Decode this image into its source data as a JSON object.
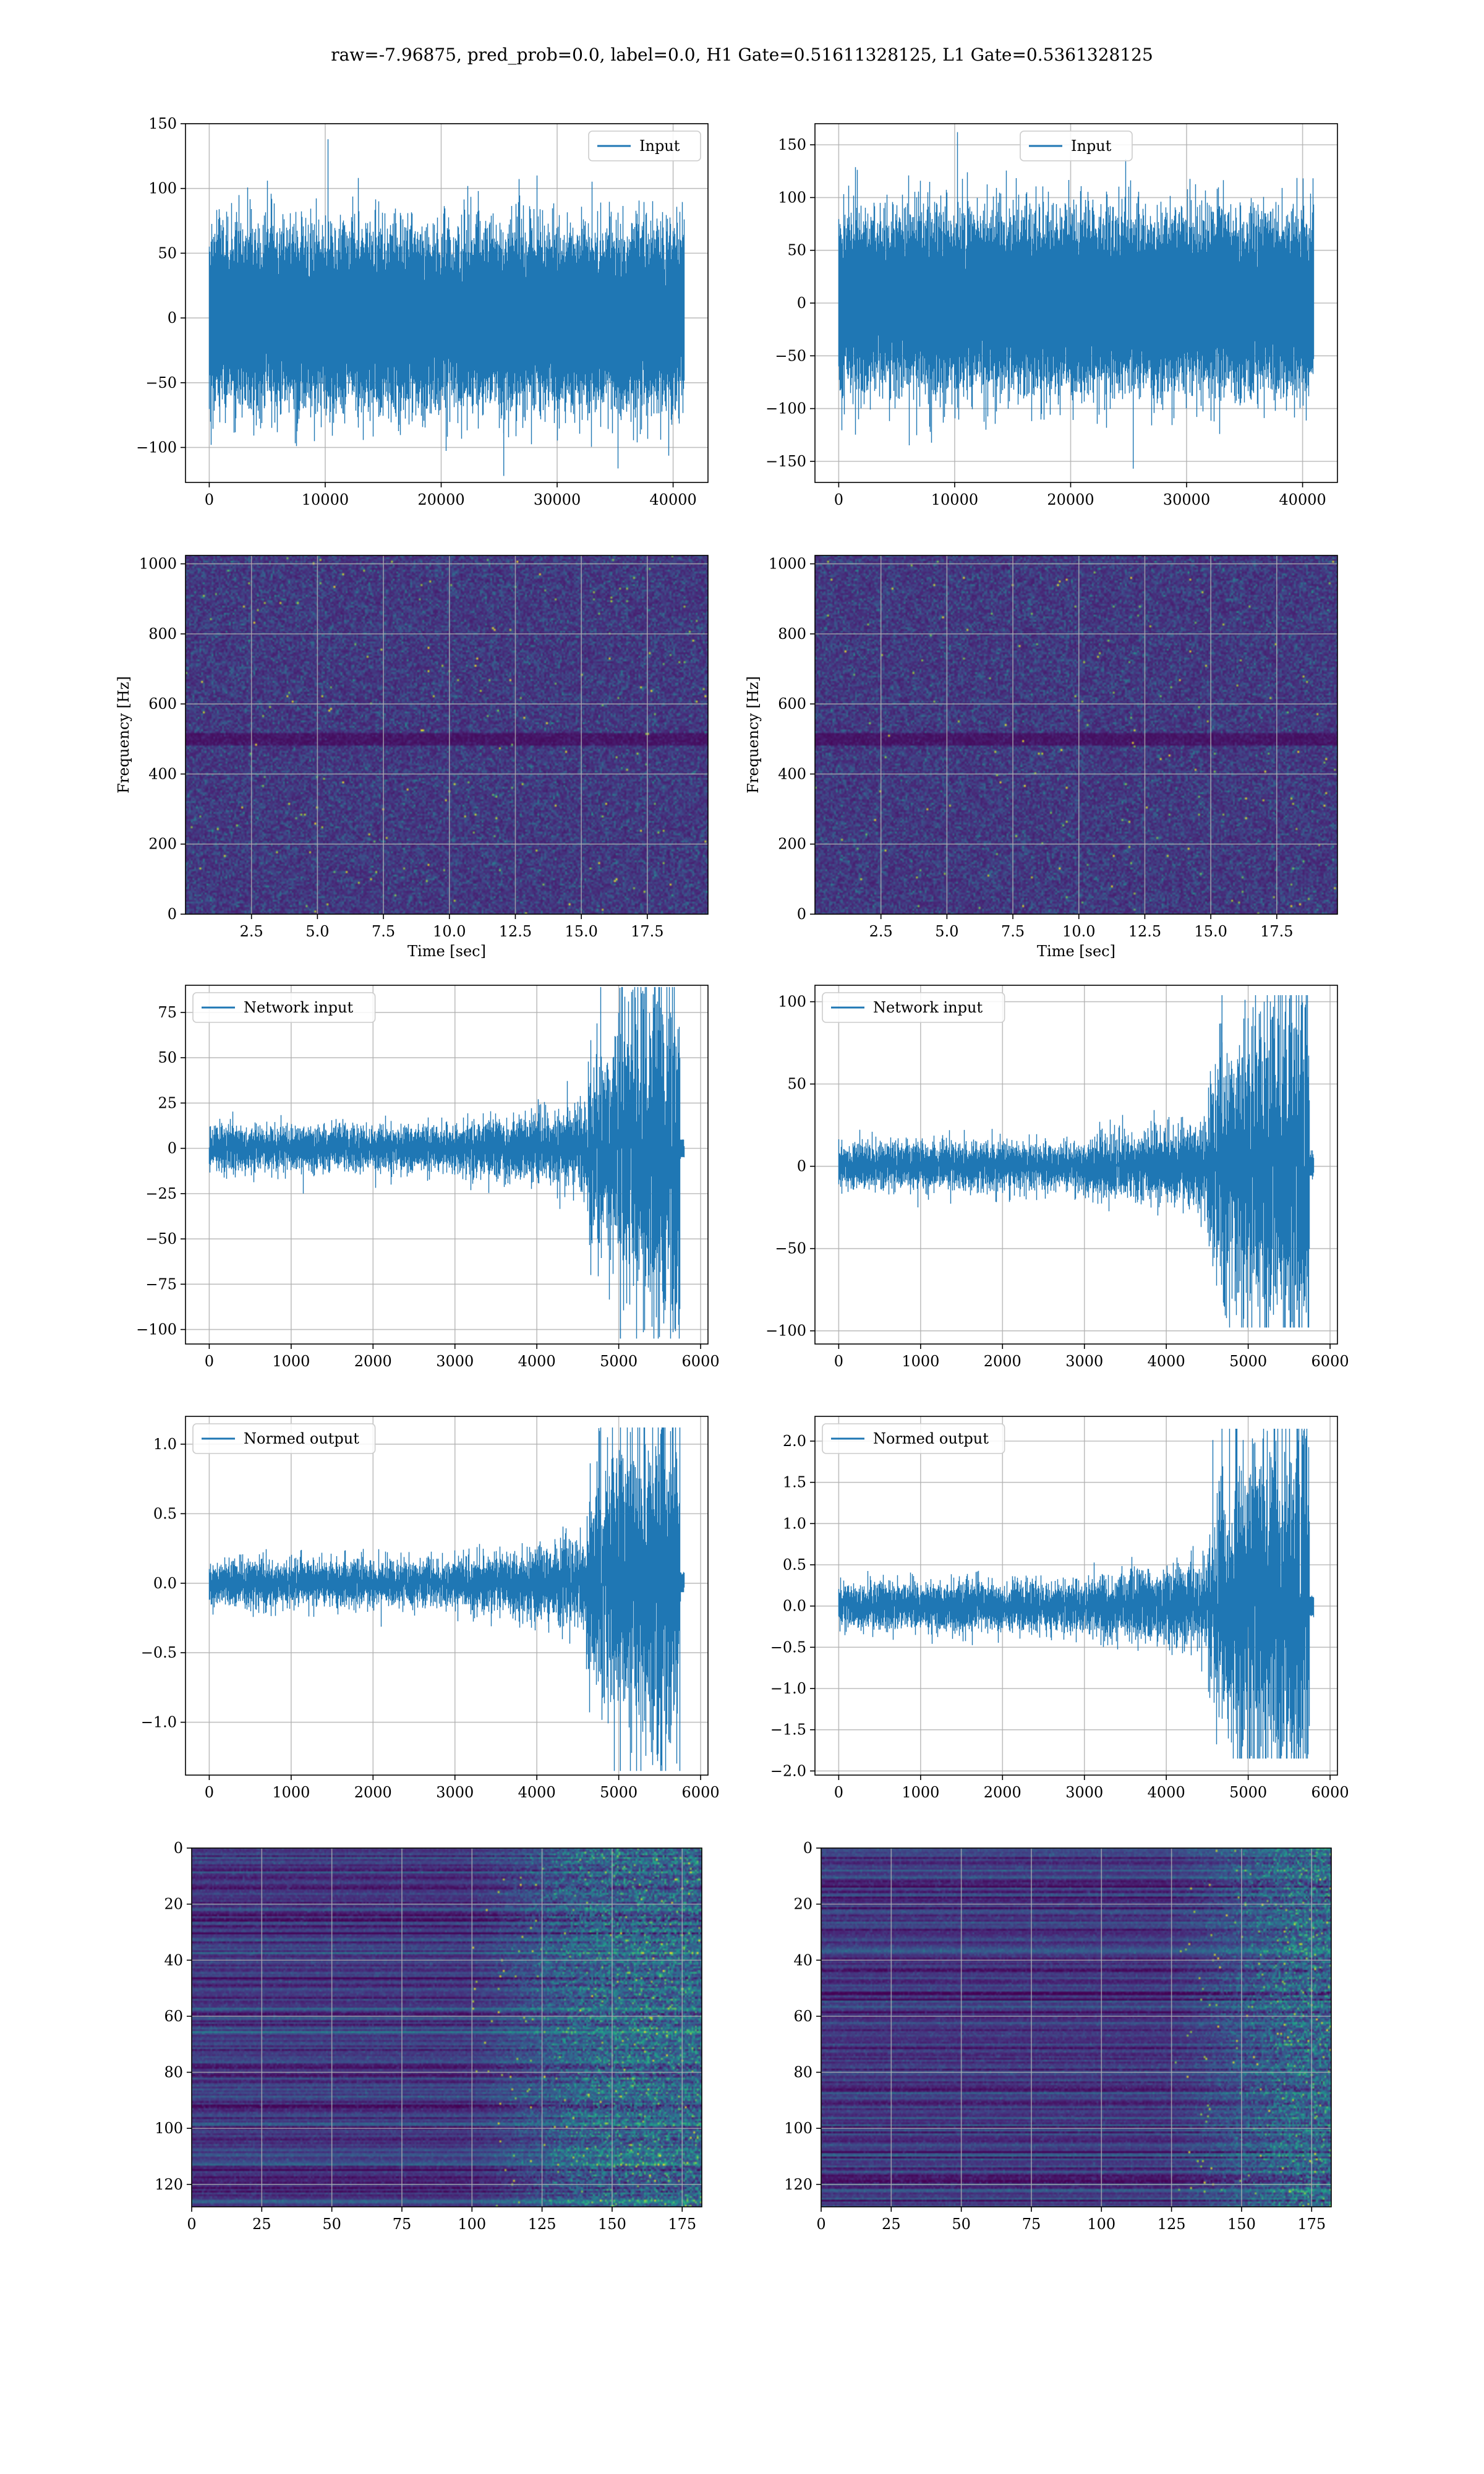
{
  "figure": {
    "suptitle": "raw=-7.96875, pred_prob=0.0, label=0.0, H1 Gate=0.51611328125, L1 Gate=0.5361328125"
  },
  "colors": {
    "line": "#1f77b4",
    "grid": "#b0b0b0",
    "viridis_low": "#440154",
    "viridis_high": "#fde725"
  },
  "chart_data": [
    {
      "id": "input-h1",
      "type": "line",
      "xlabel": "",
      "ylabel": "",
      "legend": "Input",
      "legend_loc": "upper-right",
      "xlim": [
        -2048,
        43008
      ],
      "ylim": [
        -127,
        150
      ],
      "xticks": [
        0,
        10000,
        20000,
        30000,
        40000
      ],
      "xtick_labels": [
        "0",
        "10000",
        "20000",
        "30000",
        "40000"
      ],
      "yticks": [
        -100,
        -50,
        0,
        50,
        100,
        150
      ],
      "ytick_labels": [
        "−100",
        "−50",
        "0",
        "50",
        "100",
        "150"
      ],
      "signal": {
        "n": 40960,
        "noise_std": 28,
        "peak_pos": 75,
        "peak_neg": -112,
        "max": 138,
        "min": -122
      }
    },
    {
      "id": "input-l1",
      "type": "line",
      "xlabel": "",
      "ylabel": "",
      "legend": "Input",
      "legend_loc": "upper-center",
      "xlim": [
        -2048,
        43008
      ],
      "ylim": [
        -170,
        170
      ],
      "xticks": [
        0,
        10000,
        20000,
        30000,
        40000
      ],
      "xtick_labels": [
        "0",
        "10000",
        "20000",
        "30000",
        "40000"
      ],
      "yticks": [
        -150,
        -100,
        -50,
        0,
        50,
        100,
        150
      ],
      "ytick_labels": [
        "−150",
        "−100",
        "−50",
        "0",
        "50",
        "100",
        "150"
      ],
      "signal": {
        "n": 40960,
        "noise_std": 34,
        "peak_pos": 80,
        "peak_neg": -125,
        "max": 162,
        "min": -157
      }
    },
    {
      "id": "spectrogram-h1",
      "type": "heatmap",
      "xlabel": "Time [sec]",
      "ylabel": "Frequency [Hz]",
      "xlim": [
        0,
        19.8
      ],
      "ylim": [
        0,
        1024
      ],
      "xticks": [
        2.5,
        5.0,
        7.5,
        10.0,
        12.5,
        15.0,
        17.5
      ],
      "xtick_labels": [
        "2.5",
        "5.0",
        "7.5",
        "10.0",
        "12.5",
        "15.0",
        "17.5"
      ],
      "yticks": [
        0,
        200,
        400,
        600,
        800,
        1000
      ],
      "ytick_labels": [
        "0",
        "200",
        "400",
        "600",
        "800",
        "1000"
      ],
      "dark_band_hz": 500,
      "colormap": "viridis"
    },
    {
      "id": "spectrogram-l1",
      "type": "heatmap",
      "xlabel": "Time [sec]",
      "ylabel": "Frequency [Hz]",
      "xlim": [
        0,
        19.8
      ],
      "ylim": [
        0,
        1024
      ],
      "xticks": [
        2.5,
        5.0,
        7.5,
        10.0,
        12.5,
        15.0,
        17.5
      ],
      "xtick_labels": [
        "2.5",
        "5.0",
        "7.5",
        "10.0",
        "12.5",
        "15.0",
        "17.5"
      ],
      "yticks": [
        0,
        200,
        400,
        600,
        800,
        1000
      ],
      "ytick_labels": [
        "0",
        "200",
        "400",
        "600",
        "800",
        "1000"
      ],
      "dark_band_hz": 500,
      "colormap": "viridis"
    },
    {
      "id": "network-input-h1",
      "type": "line",
      "xlabel": "",
      "ylabel": "",
      "legend": "Network input",
      "legend_loc": "upper-left",
      "xlim": [
        -290,
        6090
      ],
      "ylim": [
        -108,
        90
      ],
      "xticks": [
        0,
        1000,
        2000,
        3000,
        4000,
        5000,
        6000
      ],
      "xtick_labels": [
        "0",
        "1000",
        "2000",
        "3000",
        "4000",
        "5000",
        "6000"
      ],
      "yticks": [
        -100,
        -75,
        -50,
        -25,
        0,
        25,
        50,
        75
      ],
      "ytick_labels": [
        "−100",
        "−75",
        "−50",
        "−25",
        "0",
        "25",
        "50",
        "75"
      ],
      "signal": {
        "n": 5800,
        "base_std": 6,
        "burst_start": 4600,
        "burst_end": 5740,
        "burst_amp": 38,
        "max": 89,
        "min": -105
      }
    },
    {
      "id": "network-input-l1",
      "type": "line",
      "xlabel": "",
      "ylabel": "",
      "legend": "Network input",
      "legend_loc": "upper-left",
      "xlim": [
        -290,
        6090
      ],
      "ylim": [
        -108,
        110
      ],
      "xticks": [
        0,
        1000,
        2000,
        3000,
        4000,
        5000,
        6000
      ],
      "xtick_labels": [
        "0",
        "1000",
        "2000",
        "3000",
        "4000",
        "5000",
        "6000"
      ],
      "yticks": [
        -100,
        -50,
        0,
        50,
        100
      ],
      "ytick_labels": [
        "−100",
        "−50",
        "0",
        "50",
        "100"
      ],
      "signal": {
        "n": 5800,
        "base_std": 7,
        "burst_start": 4500,
        "burst_end": 5740,
        "burst_amp": 42,
        "max": 104,
        "min": -98
      }
    },
    {
      "id": "normed-output-h1",
      "type": "line",
      "xlabel": "",
      "ylabel": "",
      "legend": "Normed output",
      "legend_loc": "upper-left",
      "xlim": [
        -290,
        6090
      ],
      "ylim": [
        -1.38,
        1.2
      ],
      "xticks": [
        0,
        1000,
        2000,
        3000,
        4000,
        5000,
        6000
      ],
      "xtick_labels": [
        "0",
        "1000",
        "2000",
        "3000",
        "4000",
        "5000",
        "6000"
      ],
      "yticks": [
        -1.0,
        -0.5,
        0.0,
        0.5,
        1.0
      ],
      "ytick_labels": [
        "−1.0",
        "−0.5",
        "0.0",
        "0.5",
        "1.0"
      ],
      "signal": {
        "n": 5800,
        "base_std": 0.08,
        "burst_start": 4600,
        "burst_end": 5740,
        "burst_amp": 0.5,
        "max": 1.12,
        "min": -1.35
      }
    },
    {
      "id": "normed-output-l1",
      "type": "line",
      "xlabel": "",
      "ylabel": "",
      "legend": "Normed output",
      "legend_loc": "upper-left",
      "xlim": [
        -290,
        6090
      ],
      "ylim": [
        -2.05,
        2.3
      ],
      "xticks": [
        0,
        1000,
        2000,
        3000,
        4000,
        5000,
        6000
      ],
      "xtick_labels": [
        "0",
        "1000",
        "2000",
        "3000",
        "4000",
        "5000",
        "6000"
      ],
      "yticks": [
        -2.0,
        -1.5,
        -1.0,
        -0.5,
        0.0,
        0.5,
        1.0,
        1.5,
        2.0
      ],
      "ytick_labels": [
        "−2.0",
        "−1.5",
        "−1.0",
        "−0.5",
        "0.0",
        "0.5",
        "1.0",
        "1.5",
        "2.0"
      ],
      "signal": {
        "n": 5800,
        "base_std": 0.14,
        "burst_start": 4500,
        "burst_end": 5740,
        "burst_amp": 0.9,
        "max": 2.15,
        "min": -1.85
      }
    },
    {
      "id": "feature-map-h1",
      "type": "heatmap",
      "xlabel": "",
      "ylabel": "",
      "xlim": [
        0,
        182
      ],
      "ylim": [
        128,
        0
      ],
      "xticks": [
        0,
        25,
        50,
        75,
        100,
        125,
        150,
        175
      ],
      "xtick_labels": [
        "0",
        "25",
        "50",
        "75",
        "100",
        "125",
        "150",
        "175"
      ],
      "yticks": [
        0,
        20,
        40,
        60,
        80,
        100,
        120
      ],
      "ytick_labels": [
        "0",
        "20",
        "40",
        "60",
        "80",
        "100",
        "120"
      ],
      "onset_col": 100,
      "colormap": "viridis"
    },
    {
      "id": "feature-map-l1",
      "type": "heatmap",
      "xlabel": "",
      "ylabel": "",
      "xlim": [
        0,
        182
      ],
      "ylim": [
        128,
        0
      ],
      "xticks": [
        0,
        25,
        50,
        75,
        100,
        125,
        150,
        175
      ],
      "xtick_labels": [
        "0",
        "25",
        "50",
        "75",
        "100",
        "125",
        "150",
        "175"
      ],
      "yticks": [
        0,
        20,
        40,
        60,
        80,
        100,
        120
      ],
      "ytick_labels": [
        "0",
        "20",
        "40",
        "60",
        "80",
        "100",
        "120"
      ],
      "onset_col": 125,
      "colormap": "viridis"
    }
  ]
}
